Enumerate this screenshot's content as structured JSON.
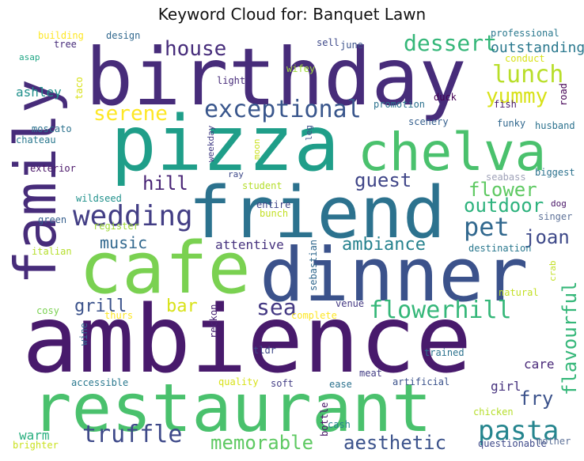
{
  "chart_data": {
    "type": "wordcloud",
    "title": "Keyword Cloud for: Banquet Lawn",
    "words": [
      {
        "text": "ambience",
        "color": "#481a6c"
      },
      {
        "text": "restaurant",
        "color": "#4ac16d"
      },
      {
        "text": "birthday",
        "color": "#472c7a"
      },
      {
        "text": "pizza",
        "color": "#1f9e89"
      },
      {
        "text": "friend",
        "color": "#2c728e"
      },
      {
        "text": "cafe",
        "color": "#7ad151"
      },
      {
        "text": "dinner",
        "color": "#3b528b"
      },
      {
        "text": "chelva",
        "color": "#4ac16d"
      },
      {
        "text": "family",
        "color": "#472c7a"
      },
      {
        "text": "wedding",
        "color": "#433e85"
      },
      {
        "text": "exceptional",
        "color": "#39568c"
      },
      {
        "text": "house",
        "color": "#472d7b"
      },
      {
        "text": "lunch",
        "color": "#b8de29"
      },
      {
        "text": "dessert",
        "color": "#35b779"
      },
      {
        "text": "pasta",
        "color": "#25858e"
      },
      {
        "text": "truffle",
        "color": "#3e4989"
      },
      {
        "text": "flowerhill",
        "color": "#35b779"
      },
      {
        "text": "memorable",
        "color": "#5ec962"
      },
      {
        "text": "aesthetic",
        "color": "#3b528b"
      },
      {
        "text": "hill",
        "color": "#482475"
      },
      {
        "text": "guest",
        "color": "#404688"
      },
      {
        "text": "pet",
        "color": "#31688e"
      },
      {
        "text": "serene",
        "color": "#fde725"
      },
      {
        "text": "yummy",
        "color": "#d8e219"
      },
      {
        "text": "outstanding",
        "color": "#2a788e"
      },
      {
        "text": "flower",
        "color": "#5ec962"
      },
      {
        "text": "outdoor",
        "color": "#2db27d"
      },
      {
        "text": "joan",
        "color": "#3e4989"
      },
      {
        "text": "ambiance",
        "color": "#26828e"
      },
      {
        "text": "music",
        "color": "#31688e"
      },
      {
        "text": "grill",
        "color": "#3b528b"
      },
      {
        "text": "bar",
        "color": "#d8e219"
      },
      {
        "text": "sea",
        "color": "#443983"
      },
      {
        "text": "fry",
        "color": "#3b528b"
      },
      {
        "text": "flavourful",
        "color": "#35b779"
      },
      {
        "text": "attentive",
        "color": "#46327e"
      },
      {
        "text": "ashley",
        "color": "#21918c"
      },
      {
        "text": "care",
        "color": "#482878"
      },
      {
        "text": "girl",
        "color": "#46327e"
      },
      {
        "text": "warm",
        "color": "#29af7f"
      },
      {
        "text": "building",
        "color": "#fde725"
      },
      {
        "text": "design",
        "color": "#31688e"
      },
      {
        "text": "professional",
        "color": "#2a788e"
      },
      {
        "text": "tree",
        "color": "#472c7a"
      },
      {
        "text": "asap",
        "color": "#21a685"
      },
      {
        "text": "sell",
        "color": "#3e4989"
      },
      {
        "text": "june",
        "color": "#3b528b"
      },
      {
        "text": "conduct",
        "color": "#d8e219"
      },
      {
        "text": "wifey",
        "color": "#a0da39"
      },
      {
        "text": "light",
        "color": "#472c7a"
      },
      {
        "text": "taco",
        "color": "#d8e219"
      },
      {
        "text": "road",
        "color": "#440154"
      },
      {
        "text": "promotion",
        "color": "#2c728e"
      },
      {
        "text": "duck",
        "color": "#440154"
      },
      {
        "text": "fish",
        "color": "#48186a"
      },
      {
        "text": "scenery",
        "color": "#355f8d"
      },
      {
        "text": "funky",
        "color": "#31688e"
      },
      {
        "text": "husband",
        "color": "#2c728e"
      },
      {
        "text": "moscato",
        "color": "#2c728e"
      },
      {
        "text": "chateau",
        "color": "#2a788e"
      },
      {
        "text": "weekday",
        "color": "#433e85"
      },
      {
        "text": "moon",
        "color": "#cae11f"
      },
      {
        "text": "leg",
        "color": "#3b528b"
      },
      {
        "text": "exterior",
        "color": "#481467"
      },
      {
        "text": "ray",
        "color": "#3e4989"
      },
      {
        "text": "seabass",
        "color": "#9fa2b8"
      },
      {
        "text": "biggest",
        "color": "#2c728e"
      },
      {
        "text": "student",
        "color": "#b5de2b"
      },
      {
        "text": "dog",
        "color": "#481467"
      },
      {
        "text": "wildseed",
        "color": "#21918c"
      },
      {
        "text": "entire",
        "color": "#404688"
      },
      {
        "text": "bunch",
        "color": "#c2df23"
      },
      {
        "text": "green",
        "color": "#355f8d"
      },
      {
        "text": "register",
        "color": "#a0da39"
      },
      {
        "text": "singer",
        "color": "#5f7399"
      },
      {
        "text": "italian",
        "color": "#b5de2b"
      },
      {
        "text": "destination",
        "color": "#2a788e"
      },
      {
        "text": "sebastian",
        "color": "#31688e"
      },
      {
        "text": "crab",
        "color": "#c2df23"
      },
      {
        "text": "natural",
        "color": "#c2df23"
      },
      {
        "text": "cosy",
        "color": "#7ad151"
      },
      {
        "text": "thurs",
        "color": "#fde725"
      },
      {
        "text": "reckon",
        "color": "#482475"
      },
      {
        "text": "venue",
        "color": "#443983"
      },
      {
        "text": "complete",
        "color": "#fde725"
      },
      {
        "text": "wine",
        "color": "#31688e"
      },
      {
        "text": "tldr",
        "color": "#3e4989"
      },
      {
        "text": "trained",
        "color": "#2c728e"
      },
      {
        "text": "meat",
        "color": "#433e85"
      },
      {
        "text": "accessible",
        "color": "#2a788e"
      },
      {
        "text": "quality",
        "color": "#d8e219"
      },
      {
        "text": "soft",
        "color": "#433e85"
      },
      {
        "text": "ease",
        "color": "#2c728e"
      },
      {
        "text": "artificial",
        "color": "#3b528b"
      },
      {
        "text": "bottle",
        "color": "#481467"
      },
      {
        "text": "cash",
        "color": "#26828e"
      },
      {
        "text": "chicken",
        "color": "#b5de2b"
      },
      {
        "text": "brighter",
        "color": "#cae11f"
      },
      {
        "text": "questionable",
        "color": "#3e4989"
      },
      {
        "text": "mother",
        "color": "#5f7399"
      }
    ]
  }
}
